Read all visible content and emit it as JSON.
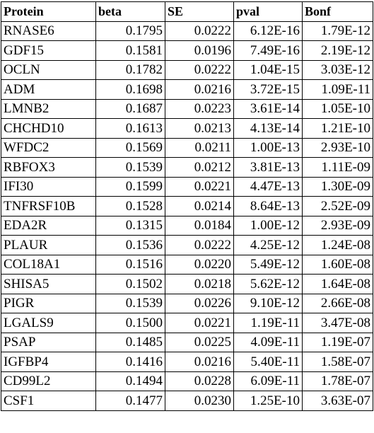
{
  "table": {
    "headers": [
      "Protein",
      "beta",
      "SE",
      "pval",
      "Bonf"
    ],
    "rows": [
      [
        "RNASE6",
        "0.1795",
        "0.0222",
        "6.12E-16",
        "1.79E-12"
      ],
      [
        "GDF15",
        "0.1581",
        "0.0196",
        "7.49E-16",
        "2.19E-12"
      ],
      [
        "OCLN",
        "0.1782",
        "0.0222",
        "1.04E-15",
        "3.03E-12"
      ],
      [
        "ADM",
        "0.1698",
        "0.0216",
        "3.72E-15",
        "1.09E-11"
      ],
      [
        "LMNB2",
        "0.1687",
        "0.0223",
        "3.61E-14",
        "1.05E-10"
      ],
      [
        "CHCHD10",
        "0.1613",
        "0.0213",
        "4.13E-14",
        "1.21E-10"
      ],
      [
        "WFDC2",
        "0.1569",
        "0.0211",
        "1.00E-13",
        "2.93E-10"
      ],
      [
        "RBFOX3",
        "0.1539",
        "0.0212",
        "3.81E-13",
        "1.11E-09"
      ],
      [
        "IFI30",
        "0.1599",
        "0.0221",
        "4.47E-13",
        "1.30E-09"
      ],
      [
        "TNFRSF10B",
        "0.1528",
        "0.0214",
        "8.64E-13",
        "2.52E-09"
      ],
      [
        "EDA2R",
        "0.1315",
        "0.0184",
        "1.00E-12",
        "2.93E-09"
      ],
      [
        "PLAUR",
        "0.1536",
        "0.0222",
        "4.25E-12",
        "1.24E-08"
      ],
      [
        "COL18A1",
        "0.1516",
        "0.0220",
        "5.49E-12",
        "1.60E-08"
      ],
      [
        "SHISA5",
        "0.1502",
        "0.0218",
        "5.62E-12",
        "1.64E-08"
      ],
      [
        "PIGR",
        "0.1539",
        "0.0226",
        "9.10E-12",
        "2.66E-08"
      ],
      [
        "LGALS9",
        "0.1500",
        "0.0221",
        "1.19E-11",
        "3.47E-08"
      ],
      [
        "PSAP",
        "0.1485",
        "0.0225",
        "4.09E-11",
        "1.19E-07"
      ],
      [
        "IGFBP4",
        "0.1416",
        "0.0216",
        "5.40E-11",
        "1.58E-07"
      ],
      [
        "CD99L2",
        "0.1494",
        "0.0228",
        "6.09E-11",
        "1.78E-07"
      ],
      [
        "CSF1",
        "0.1477",
        "0.0230",
        "1.25E-10",
        "3.63E-07"
      ]
    ]
  }
}
